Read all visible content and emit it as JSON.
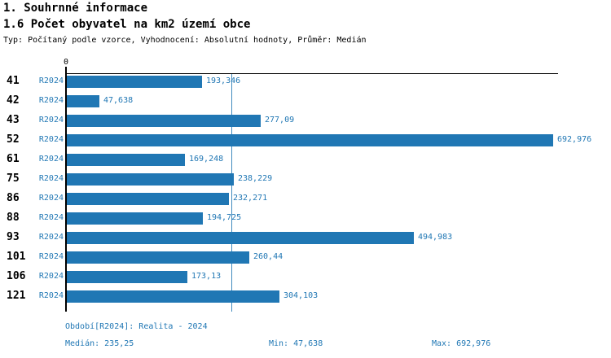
{
  "header": {
    "title1": "1. Souhrnné informace",
    "title2": "1.6 Počet obyvatel na km2 území obce",
    "subtitle": "Typ: Počítaný podle vzorce, Vyhodnocení: Absolutní hodnoty, Průměr: Medián"
  },
  "chart_data": {
    "type": "bar",
    "orientation": "horizontal",
    "title": "1.6 Počet obyvatel na km2 území obce",
    "categories": [
      "41",
      "42",
      "43",
      "52",
      "61",
      "75",
      "86",
      "88",
      "93",
      "101",
      "106",
      "121"
    ],
    "series_label": "R2024",
    "values": [
      193.346,
      47.638,
      277.09,
      692.976,
      169.248,
      238.229,
      232.271,
      194.725,
      494.983,
      260.44,
      173.13,
      304.103
    ],
    "value_labels": [
      "193,346",
      "47,638",
      "277,09",
      "692,976",
      "169,248",
      "238,229",
      "232,271",
      "194,725",
      "494,983",
      "260,44",
      "173,13",
      "304,103"
    ],
    "x_axis": {
      "zero_label": "0",
      "min": 0,
      "max": 700,
      "grid": false
    },
    "median_line_value": 235.25,
    "bar_color": "#2077b4",
    "median_line_color": "#2077b4",
    "legend_position": "none"
  },
  "footer": {
    "period": "Období[R2024]: Realita - 2024",
    "median": "Medián: 235,25",
    "min": "Min: 47,638",
    "max": "Max: 692,976"
  }
}
